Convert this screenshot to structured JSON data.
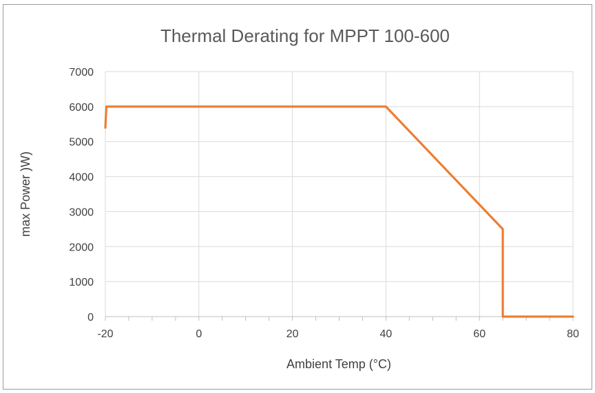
{
  "chart_data": {
    "type": "line",
    "title": "Thermal  Derating for MPPT 100-600",
    "xlabel": "Ambient Temp (°C)",
    "ylabel": "max Power )W)",
    "xlim": [
      -20,
      80
    ],
    "ylim": [
      0,
      7000
    ],
    "x_ticks": [
      "-20",
      "0",
      "20",
      "40",
      "60",
      "80"
    ],
    "y_ticks": [
      "0",
      "1000",
      "2000",
      "3000",
      "4000",
      "5000",
      "6000",
      "7000"
    ],
    "grid": true,
    "legend": "none",
    "series": [
      {
        "color": "#ED7D31",
        "points": [
          [
            -20,
            5400
          ],
          [
            -19.8,
            6000
          ],
          [
            40,
            6000
          ],
          [
            65,
            2500
          ],
          [
            65,
            0
          ],
          [
            80,
            0
          ]
        ]
      }
    ]
  }
}
